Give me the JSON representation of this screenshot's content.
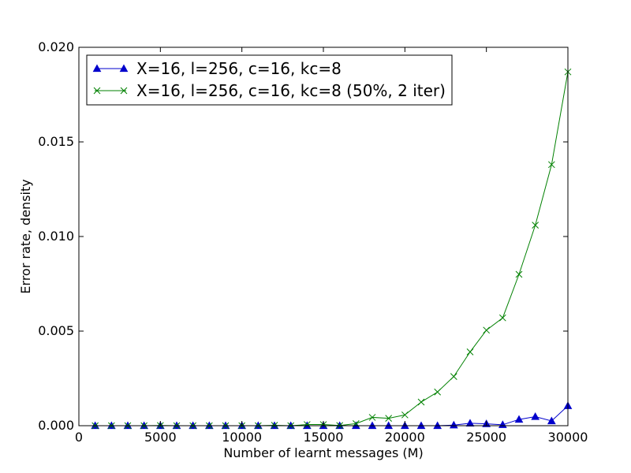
{
  "chart_data": {
    "type": "line",
    "xlabel": "Number of learnt messages (M)",
    "ylabel": "Error rate, density",
    "xlim": [
      0,
      30000
    ],
    "ylim": [
      0,
      0.02
    ],
    "x_ticks": [
      "0",
      "5000",
      "10000",
      "15000",
      "20000",
      "25000",
      "30000"
    ],
    "y_ticks": [
      "0.000",
      "0.005",
      "0.010",
      "0.015",
      "0.020"
    ],
    "grid": false,
    "legend_position": "top-left",
    "x": [
      1000,
      2000,
      3000,
      4000,
      5000,
      6000,
      7000,
      8000,
      9000,
      10000,
      11000,
      12000,
      13000,
      14000,
      15000,
      16000,
      17000,
      18000,
      19000,
      20000,
      21000,
      22000,
      23000,
      24000,
      25000,
      26000,
      27000,
      28000,
      29000,
      30000
    ],
    "series": [
      {
        "name": "X=16, l=256, c=16, kc=8",
        "color": "#0000cc",
        "marker": "triangle",
        "values": [
          0,
          0,
          0,
          0,
          0,
          0,
          0,
          0,
          0,
          0,
          0,
          0,
          0,
          0,
          0,
          0,
          0,
          0,
          0,
          0,
          0,
          0,
          3e-05,
          0.00013,
          0.0001,
          5e-05,
          0.00033,
          0.00048,
          0.00025,
          0.00105
        ]
      },
      {
        "name": "X=16, l=256, c=16, kc=8 (50%, 2 iter)",
        "color": "#008000",
        "marker": "x",
        "values": [
          0,
          0,
          0,
          0,
          1e-05,
          0,
          0,
          0,
          0,
          0,
          0,
          2e-05,
          0,
          6e-05,
          6e-05,
          1e-05,
          0.00011,
          0.00044,
          0.00039,
          0.00057,
          0.00125,
          0.00178,
          0.0026,
          0.0039,
          0.00505,
          0.0057,
          0.008,
          0.0106,
          0.0138,
          0.0187
        ]
      }
    ]
  }
}
